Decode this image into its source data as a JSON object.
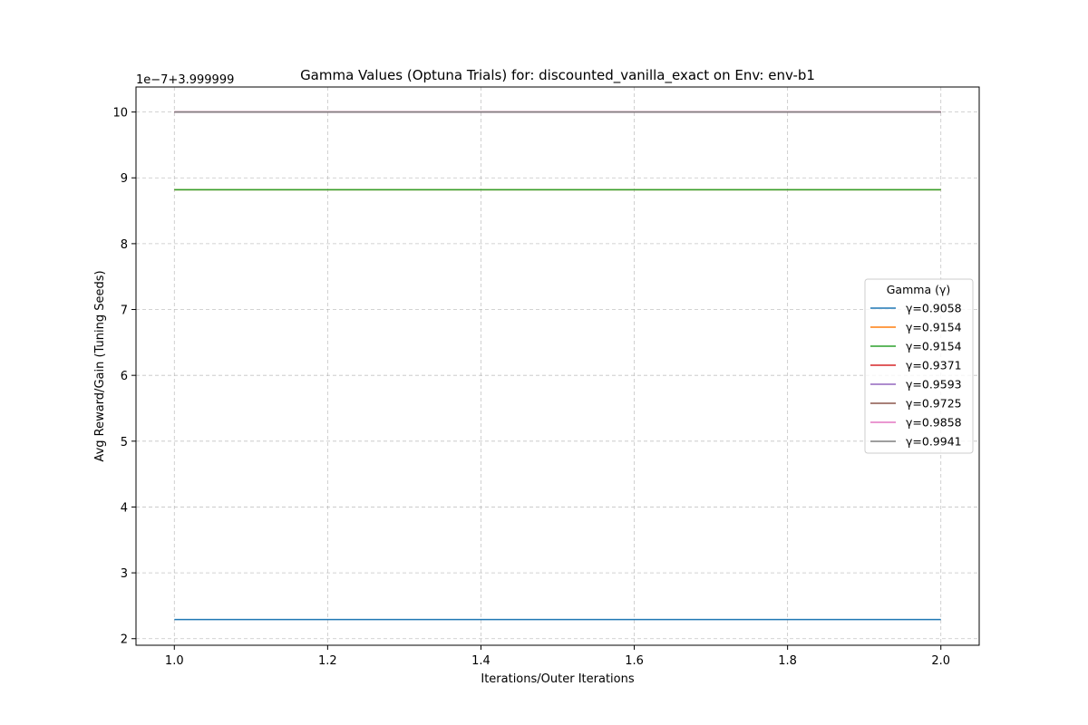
{
  "chart_data": {
    "type": "line",
    "title": "Gamma Values (Optuna Trials) for: discounted_vanilla_exact on Env: env-b1",
    "xlabel": "Iterations/Outer Iterations",
    "ylabel": "Avg Reward/Gain (Tuning Seeds)",
    "offset_label": "1e−7+3.999999",
    "xlim": [
      0.95,
      2.05
    ],
    "ylim": [
      1.9,
      10.38
    ],
    "xticks": [
      "1.0",
      "1.2",
      "1.4",
      "1.6",
      "1.8",
      "2.0"
    ],
    "yticks": [
      "2",
      "3",
      "4",
      "5",
      "6",
      "7",
      "8",
      "9",
      "10"
    ],
    "grid": true,
    "legend_title": "Gamma (γ)",
    "legend_position": "center-right",
    "series": [
      {
        "name": "γ=0.9058",
        "color": "#1f77b4",
        "x": [
          1.0,
          2.0
        ],
        "y": [
          2.29,
          2.29
        ]
      },
      {
        "name": "γ=0.9154",
        "color": "#ff7f0e",
        "x": [
          1.0,
          2.0
        ],
        "y": [
          8.82,
          8.82
        ]
      },
      {
        "name": "γ=0.9154",
        "color": "#2ca02c",
        "x": [
          1.0,
          2.0
        ],
        "y": [
          8.82,
          8.82
        ]
      },
      {
        "name": "γ=0.9371",
        "color": "#d62728",
        "x": [
          1.0,
          2.0
        ],
        "y": [
          10.0,
          10.0
        ]
      },
      {
        "name": "γ=0.9593",
        "color": "#9467bd",
        "x": [
          1.0,
          2.0
        ],
        "y": [
          10.0,
          10.0
        ]
      },
      {
        "name": "γ=0.9725",
        "color": "#8c564b",
        "x": [
          1.0,
          2.0
        ],
        "y": [
          10.0,
          10.0
        ]
      },
      {
        "name": "γ=0.9858",
        "color": "#e377c2",
        "x": [
          1.0,
          2.0
        ],
        "y": [
          10.0,
          10.0
        ]
      },
      {
        "name": "γ=0.9941",
        "color": "#7f7f7f",
        "x": [
          1.0,
          2.0
        ],
        "y": [
          10.0,
          10.0
        ]
      }
    ]
  }
}
